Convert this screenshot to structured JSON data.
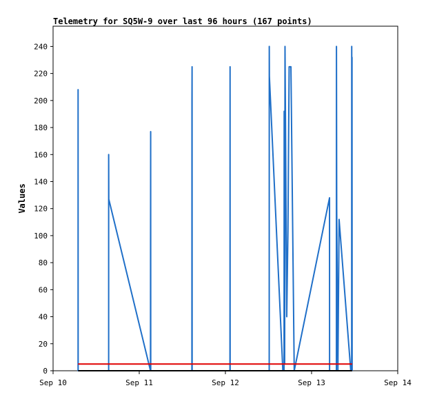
{
  "chart_data": {
    "type": "line",
    "title": "Telemetry for SQ5W-9 over last 96 hours (167 points)",
    "ylabel": "Values",
    "xlabel": "",
    "ylim": [
      0,
      255
    ],
    "xlim": [
      "Sep 10 00:00",
      "Sep 14 00:00"
    ],
    "yticks": [
      0,
      20,
      40,
      60,
      80,
      100,
      120,
      140,
      160,
      180,
      200,
      220,
      240
    ],
    "xticks": [
      {
        "label": "Sep 10",
        "value": "Sep 10 00:00"
      },
      {
        "label": "Sep 11",
        "value": "Sep 11 00:00"
      },
      {
        "label": "Sep 12",
        "value": "Sep 12 00:00"
      },
      {
        "label": "Sep 13",
        "value": "Sep 13 00:00"
      },
      {
        "label": "Sep 14",
        "value": "Sep 14 00:00"
      }
    ],
    "grid": false,
    "legend": "none",
    "series": [
      {
        "color": "#1f6fc8",
        "points": [
          [
            "Sep 10 06:58",
            0
          ],
          [
            "Sep 10 06:58",
            208
          ],
          [
            "Sep 10 06:59",
            0
          ],
          [
            "Sep 10 15:29",
            0
          ],
          [
            "Sep 10 15:29",
            160
          ],
          [
            "Sep 10 15:31",
            127
          ],
          [
            "Sep 11 03:08",
            0
          ],
          [
            "Sep 11 03:09",
            88
          ],
          [
            "Sep 11 03:11",
            177
          ],
          [
            "Sep 11 03:12",
            0
          ],
          [
            "Sep 11 14:40",
            0
          ],
          [
            "Sep 11 14:41",
            200
          ],
          [
            "Sep 11 14:43",
            225
          ],
          [
            "Sep 11 14:44",
            0
          ],
          [
            "Sep 12 01:16",
            0
          ],
          [
            "Sep 12 01:17",
            112
          ],
          [
            "Sep 12 01:18",
            225
          ],
          [
            "Sep 12 01:19",
            0
          ],
          [
            "Sep 12 12:12",
            0
          ],
          [
            "Sep 12 12:13",
            240
          ],
          [
            "Sep 12 12:15",
            218
          ],
          [
            "Sep 12 16:00",
            0
          ],
          [
            "Sep 12 16:20",
            0
          ],
          [
            "Sep 12 16:22",
            192
          ],
          [
            "Sep 12 16:30",
            5
          ],
          [
            "Sep 12 16:36",
            240
          ],
          [
            "Sep 12 17:05",
            40
          ],
          [
            "Sep 12 17:25",
            103
          ],
          [
            "Sep 12 17:45",
            225
          ],
          [
            "Sep 12 18:15",
            225
          ],
          [
            "Sep 12 19:10",
            0
          ],
          [
            "Sep 13 05:00",
            128
          ],
          [
            "Sep 13 05:01",
            0
          ],
          [
            "Sep 13 06:55",
            0
          ],
          [
            "Sep 13 06:56",
            240
          ],
          [
            "Sep 13 07:00",
            120
          ],
          [
            "Sep 13 07:20",
            0
          ],
          [
            "Sep 13 07:40",
            112
          ],
          [
            "Sep 13 10:55",
            0
          ],
          [
            "Sep 13 11:10",
            0
          ],
          [
            "Sep 13 11:11",
            240
          ],
          [
            "Sep 13 11:14",
            175
          ],
          [
            "Sep 13 11:16",
            232
          ],
          [
            "Sep 13 11:18",
            0
          ]
        ]
      },
      {
        "color": "#e00000",
        "points": [
          [
            "Sep 10 06:58",
            5
          ],
          [
            "Sep 13 11:18",
            5
          ]
        ]
      },
      {
        "color": "#000000",
        "points": [
          [
            "Sep 10 06:58",
            0
          ],
          [
            "Sep 13 11:18",
            0
          ]
        ]
      }
    ]
  }
}
